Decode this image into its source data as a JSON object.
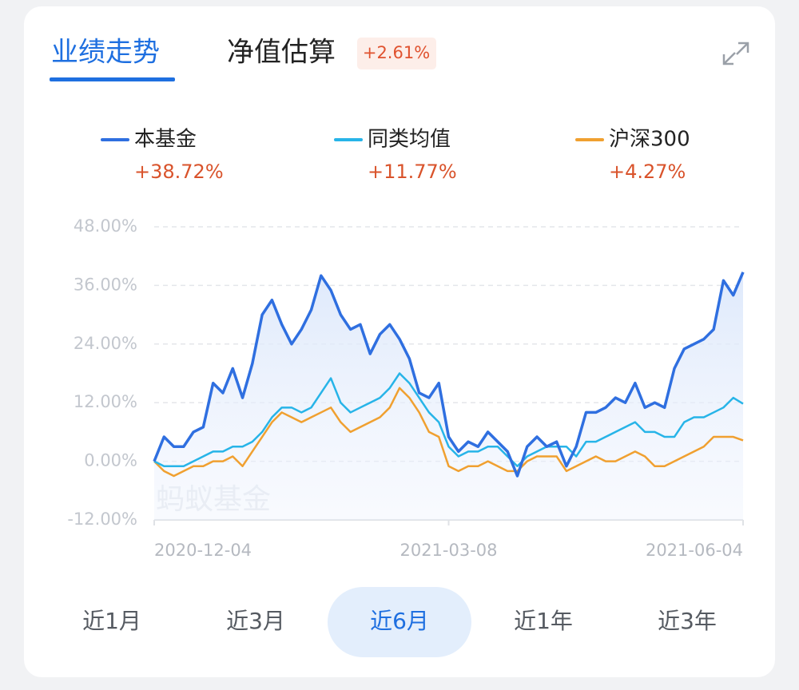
{
  "tabs": [
    {
      "label": "业绩走势",
      "active": true
    },
    {
      "label": "净值估算",
      "active": false
    }
  ],
  "estimate_badge": "+2.61%",
  "chart_data": {
    "type": "line",
    "categories": [
      "2020-12-04",
      null,
      null,
      null,
      null,
      null,
      null,
      null,
      null,
      null,
      null,
      null,
      null,
      null,
      null,
      null,
      null,
      null,
      null,
      null,
      null,
      null,
      null,
      null,
      null,
      null,
      null,
      null,
      null,
      null,
      "2021-03-08",
      null,
      null,
      null,
      null,
      null,
      null,
      null,
      null,
      null,
      null,
      null,
      null,
      null,
      null,
      null,
      null,
      null,
      null,
      null,
      null,
      null,
      null,
      null,
      null,
      null,
      null,
      null,
      null,
      null,
      "2021-06-04"
    ],
    "series": [
      {
        "name": "本基金",
        "return_label": "+38.72%",
        "color": "#2f6fe0",
        "fill_area": true,
        "values": [
          0,
          5,
          3,
          3,
          6,
          7,
          16,
          14,
          19,
          13,
          20,
          30,
          33,
          28,
          24,
          27,
          31,
          38,
          35,
          30,
          27,
          28,
          22,
          26,
          28,
          25,
          21,
          14,
          13,
          16,
          5,
          2,
          4,
          3,
          6,
          4,
          2,
          -3,
          3,
          5,
          3,
          4,
          -1,
          3,
          10,
          10,
          11,
          13,
          12,
          16,
          11,
          12,
          11,
          19,
          23,
          24,
          25,
          27,
          37,
          34,
          38.72
        ]
      },
      {
        "name": "同类均值",
        "return_label": "+11.77%",
        "color": "#27b4e8",
        "fill_area": false,
        "values": [
          0,
          -1,
          -1,
          -1,
          0,
          1,
          2,
          2,
          3,
          3,
          4,
          6,
          9,
          11,
          11,
          10,
          11,
          14,
          17,
          12,
          10,
          11,
          12,
          13,
          15,
          18,
          16,
          13,
          10,
          8,
          3,
          1,
          2,
          2,
          3,
          3,
          1,
          -1,
          1,
          2,
          3,
          3,
          3,
          1,
          4,
          4,
          5,
          6,
          7,
          8,
          6,
          6,
          5,
          5,
          8,
          9,
          9,
          10,
          11,
          13,
          11.77
        ]
      },
      {
        "name": "沪深300",
        "return_label": "+4.27%",
        "color": "#f0a030",
        "fill_area": false,
        "values": [
          0,
          -2,
          -3,
          -2,
          -1,
          -1,
          0,
          0,
          1,
          -1,
          2,
          5,
          8,
          10,
          9,
          8,
          9,
          10,
          11,
          8,
          6,
          7,
          8,
          9,
          11,
          15,
          13,
          10,
          6,
          5,
          -1,
          -2,
          -1,
          -1,
          0,
          -1,
          -2,
          -2,
          0,
          1,
          1,
          1,
          -2,
          -1,
          0,
          1,
          0,
          0,
          1,
          2,
          1,
          -1,
          -1,
          0,
          1,
          2,
          3,
          5,
          5,
          5,
          4.27
        ]
      }
    ],
    "ylim": [
      -12,
      48
    ],
    "yticks": [
      {
        "value": 48,
        "label": "48.00%"
      },
      {
        "value": 36,
        "label": "36.00%"
      },
      {
        "value": 24,
        "label": "24.00%"
      },
      {
        "value": 12,
        "label": "12.00%"
      },
      {
        "value": 0,
        "label": "0.00%"
      },
      {
        "value": -12,
        "label": "-12.00%"
      }
    ],
    "grid": true,
    "watermark": "蚂蚁基金"
  },
  "period_buttons": [
    "近1月",
    "近3月",
    "近6月",
    "近1年",
    "近3年"
  ],
  "active_period_index": 2
}
